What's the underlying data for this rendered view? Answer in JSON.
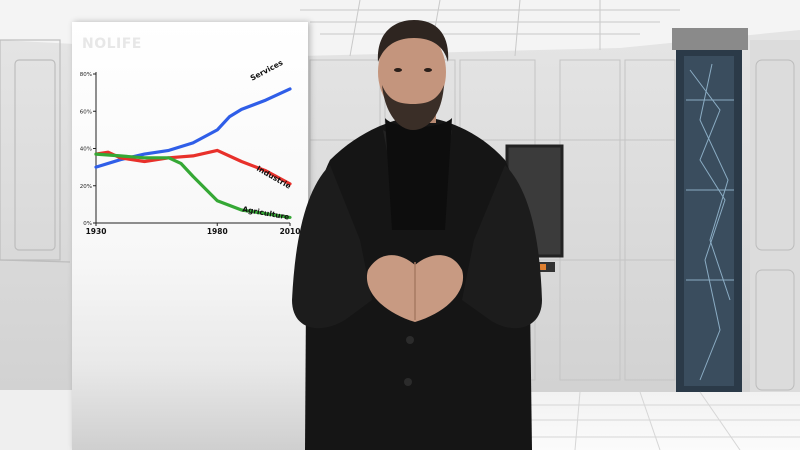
{
  "logo_text": "NOLIFE",
  "chart_data": {
    "type": "line",
    "title": "",
    "xlabel": "",
    "ylabel": "",
    "ylim": [
      0,
      80
    ],
    "xlim": [
      1930,
      2010
    ],
    "x_ticks": [
      "1930",
      "1980",
      "2010"
    ],
    "y_ticks": [
      "0%",
      "20%",
      "40%",
      "60%",
      "80%"
    ],
    "grid": false,
    "legend": "inline labels",
    "series": [
      {
        "name": "Services",
        "color": "#2f5ee8",
        "x": [
          1930,
          1940,
          1950,
          1960,
          1970,
          1980,
          1985,
          1990,
          2000,
          2010
        ],
        "y": [
          30,
          34,
          37,
          39,
          43,
          50,
          57,
          61,
          66,
          72
        ]
      },
      {
        "name": "Industrie",
        "color": "#e8302a",
        "x": [
          1930,
          1935,
          1940,
          1950,
          1960,
          1970,
          1980,
          1990,
          2000,
          2010
        ],
        "y": [
          37,
          38,
          35,
          33,
          35,
          36,
          39,
          33,
          28,
          21
        ]
      },
      {
        "name": "Agriculture",
        "color": "#35a835",
        "x": [
          1930,
          1940,
          1950,
          1960,
          1965,
          1970,
          1980,
          1990,
          2000,
          2010
        ],
        "y": [
          37,
          36,
          35,
          35,
          32,
          25,
          12,
          7,
          5,
          3
        ]
      }
    ]
  }
}
